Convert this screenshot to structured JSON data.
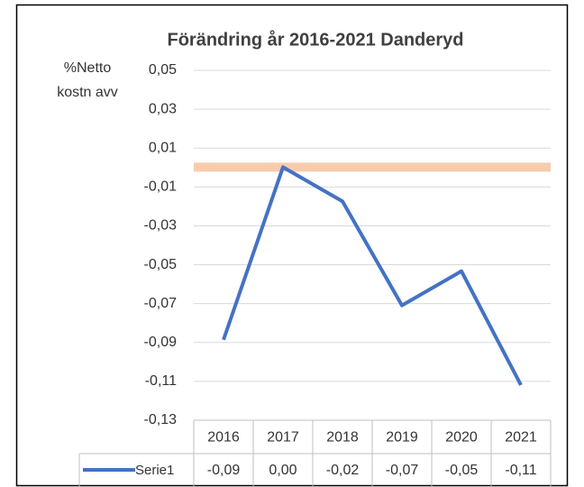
{
  "chart_data": {
    "type": "line",
    "title": "Förändring år 2016-2021 Danderyd",
    "y_label": [
      "%Netto",
      "kostn avv"
    ],
    "categories": [
      "2016",
      "2017",
      "2018",
      "2019",
      "2020",
      "2021"
    ],
    "series": [
      {
        "name": "Serie1",
        "color": "#4472c4",
        "values": [
          -0.0886,
          0.0002,
          -0.0174,
          -0.0709,
          -0.0533,
          -0.1119
        ],
        "value_labels": [
          "-0,09",
          "0,00",
          "-0,02",
          "-0,07",
          "-0,05",
          "-0,11"
        ]
      }
    ],
    "reference_line": {
      "value": 0.0002,
      "color": "#f8cbad"
    },
    "ylim": [
      -0.13,
      0.05
    ],
    "yticks": [
      {
        "value": 0.05,
        "label": "0,05"
      },
      {
        "value": 0.03,
        "label": "0,03"
      },
      {
        "value": 0.01,
        "label": "0,01"
      },
      {
        "value": -0.01,
        "label": "-0,01"
      },
      {
        "value": -0.03,
        "label": "-0,03"
      },
      {
        "value": -0.05,
        "label": "-0,05"
      },
      {
        "value": -0.07,
        "label": "-0,07"
      },
      {
        "value": -0.09,
        "label": "-0,09"
      },
      {
        "value": -0.11,
        "label": "-0,11"
      },
      {
        "value": -0.13,
        "label": "-0,13"
      }
    ],
    "grid": true
  }
}
